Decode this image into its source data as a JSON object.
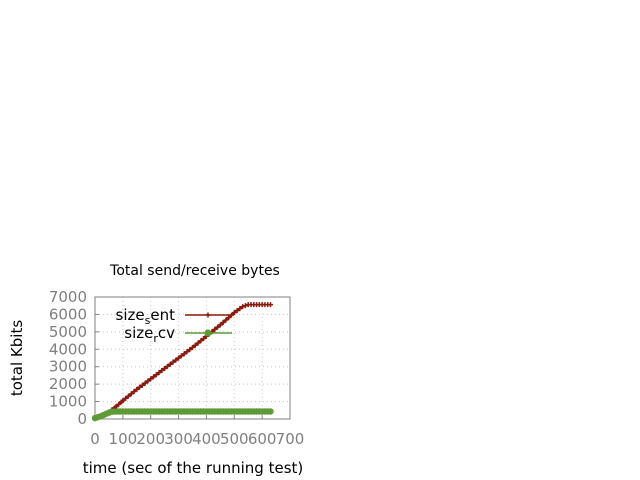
{
  "chart_data": {
    "type": "line",
    "title": "Total send/receive bytes",
    "xlabel": "time (sec of the running test)",
    "ylabel": "total Kbits",
    "xlim": [
      0,
      700
    ],
    "ylim": [
      0,
      7000
    ],
    "xticks": [
      "0",
      "100",
      "200",
      "300",
      "400",
      "500",
      "600",
      "700"
    ],
    "yticks": [
      "0",
      "1000",
      "2000",
      "3000",
      "4000",
      "5000",
      "6000",
      "7000"
    ],
    "grid": true,
    "legend_position": "top-left",
    "series": [
      {
        "name": "size_sent",
        "legend_main": "size",
        "legend_sub": "s",
        "legend_tail": "ent",
        "color": "#8b1a0e",
        "marker": "plus",
        "points": [
          [
            0,
            50
          ],
          [
            25,
            200
          ],
          [
            50,
            400
          ],
          [
            75,
            700
          ],
          [
            100,
            1050
          ],
          [
            150,
            1700
          ],
          [
            200,
            2300
          ],
          [
            250,
            2900
          ],
          [
            300,
            3500
          ],
          [
            350,
            4100
          ],
          [
            400,
            4750
          ],
          [
            450,
            5400
          ],
          [
            500,
            6100
          ],
          [
            530,
            6450
          ],
          [
            550,
            6560
          ],
          [
            630,
            6560
          ]
        ]
      },
      {
        "name": "size_rcv",
        "legend_main": "size",
        "legend_sub": "r",
        "legend_tail": "cv",
        "color": "#5f9a38",
        "marker": "circle",
        "points": [
          [
            0,
            50
          ],
          [
            20,
            150
          ],
          [
            40,
            300
          ],
          [
            60,
            420
          ],
          [
            80,
            430
          ],
          [
            630,
            430
          ]
        ]
      }
    ]
  }
}
